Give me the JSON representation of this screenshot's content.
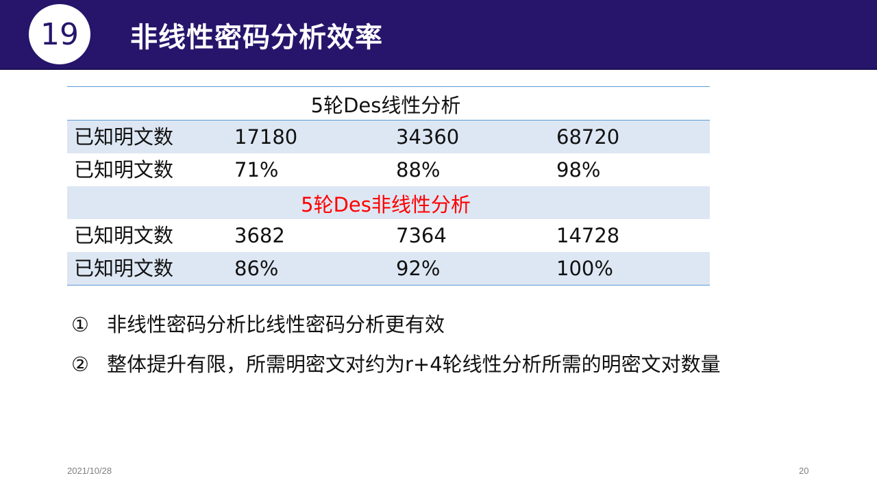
{
  "header": {
    "slide_number": "19",
    "title": "非线性密码分析效率"
  },
  "table": {
    "sections": [
      {
        "heading": "5轮Des线性分析",
        "rows": [
          [
            "已知明文数",
            "17180",
            "34360",
            "68720"
          ],
          [
            "已知明文数",
            "71%",
            "88%",
            "98%"
          ]
        ]
      },
      {
        "heading": "5轮Des非线性分析",
        "rows": [
          [
            "已知明文数",
            "3682",
            "7364",
            "14728"
          ],
          [
            "已知明文数",
            "86%",
            "92%",
            "100%"
          ]
        ]
      }
    ]
  },
  "notes": [
    {
      "marker": "①",
      "text": "非线性密码分析比线性密码分析更有效"
    },
    {
      "marker": "②",
      "text": "整体提升有限，所需明密文对约为r+4轮线性分析所需的明密文对数量"
    }
  ],
  "footer": {
    "date": "2021/10/28",
    "page": "20"
  },
  "colors": {
    "header_bg": "#26156b",
    "row_shade": "#dde7f3",
    "rule": "#5b9bd5",
    "highlight": "#ff0000"
  }
}
